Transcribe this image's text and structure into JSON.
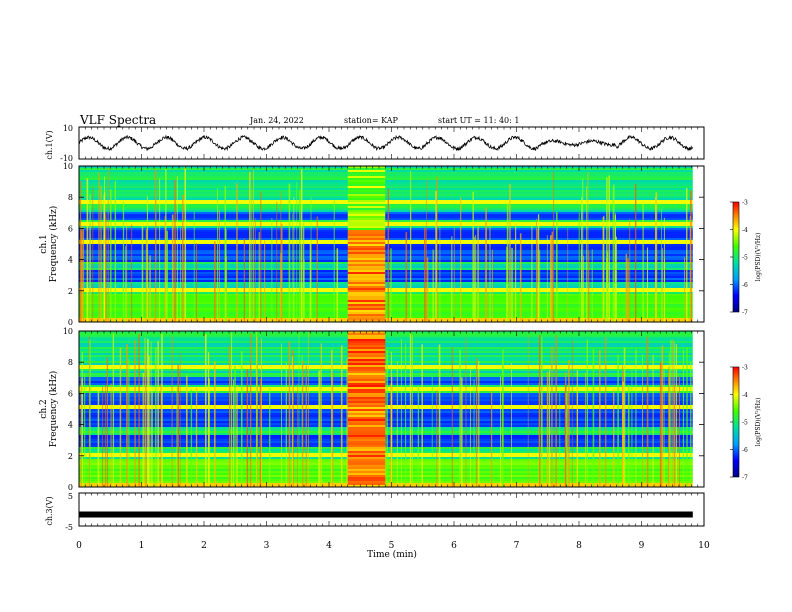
{
  "header": {
    "title": "VLF Spectra",
    "date": "Jan. 24, 2022",
    "station": "station= KAP",
    "start": "start UT =  11: 40: 1"
  },
  "chart_data": [
    {
      "type": "line",
      "panel": "ch1-waveform",
      "ylabel": "ch.1(V)",
      "ylim": [
        -10,
        10
      ],
      "yticks": [
        "10",
        "-10"
      ],
      "x_range_min": [
        0,
        9.82
      ],
      "description_values": "oscillating waveform about 0 V with amplitude roughly 3-5 V, period about 0.6 min",
      "approx_period_min": 0.62,
      "approx_amplitude_v": 3.5
    },
    {
      "type": "heatmap",
      "panel": "ch1-spectrogram",
      "ylabel": "ch.1 Frequency (kHz)",
      "ylim": [
        0,
        10
      ],
      "yticks": [
        "0",
        "2",
        "4",
        "6",
        "8",
        "10"
      ],
      "xlim": [
        0,
        9.82
      ],
      "colorbar": {
        "label": "log(PSD)(V²/Hz)",
        "range": [
          -7,
          -3
        ],
        "ticks": [
          "-3",
          "-4",
          "-5",
          "-6",
          "-7"
        ]
      },
      "burst_interval_min": [
        4.3,
        4.9
      ]
    },
    {
      "type": "heatmap",
      "panel": "ch2-spectrogram",
      "ylabel": "ch.2 Frequency (kHz)",
      "ylim": [
        0,
        10
      ],
      "yticks": [
        "0",
        "2",
        "4",
        "6",
        "8",
        "10"
      ],
      "xlim": [
        0,
        9.82
      ],
      "colorbar": {
        "label": "log(PSD)(V²/Hz)",
        "range": [
          -7,
          -3
        ],
        "ticks": [
          "-3",
          "-4",
          "-5",
          "-6",
          "-7"
        ]
      },
      "burst_interval_min": [
        4.3,
        4.9
      ]
    },
    {
      "type": "line",
      "panel": "ch3-waveform",
      "ylabel": "ch.3(V)",
      "ylim": [
        -5,
        5
      ],
      "yticks": [
        "5",
        "-5"
      ],
      "x_range_min": [
        0,
        9.82
      ],
      "approx_level_v": -1.5
    }
  ],
  "xaxis": {
    "label": "Time (min)",
    "ticks": [
      "0",
      "1",
      "2",
      "3",
      "4",
      "5",
      "6",
      "7",
      "8",
      "9",
      "10"
    ],
    "xlim": [
      0,
      10
    ]
  },
  "colors": {
    "spectro_low": "#0000c8",
    "spectro_mid": "#00c864",
    "spectro_high": "#ff0000"
  }
}
